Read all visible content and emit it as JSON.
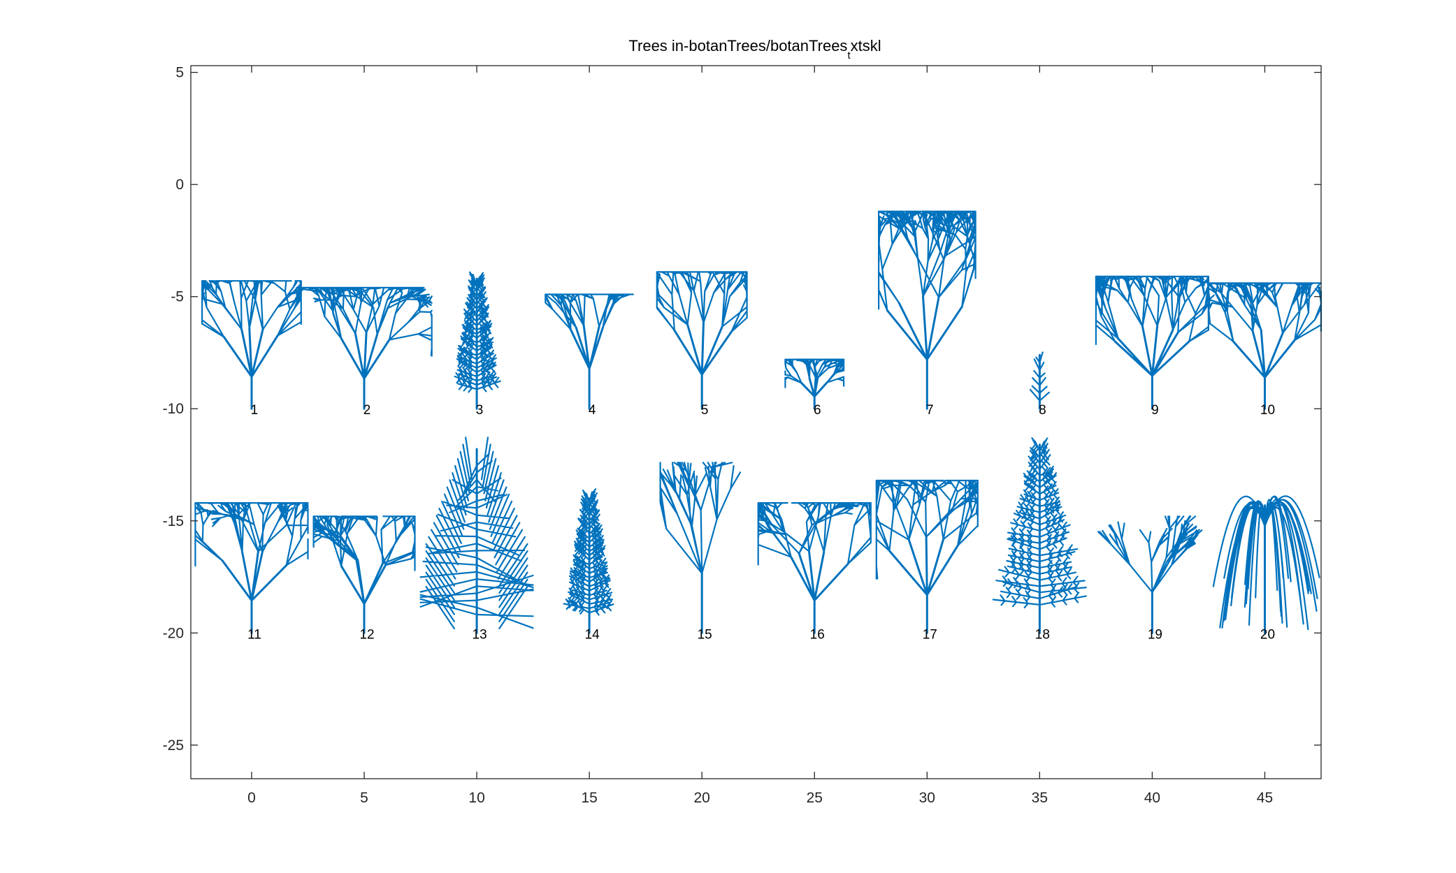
{
  "chart_data": {
    "type": "scatter",
    "title": "Trees in-botanTrees/botanTrees",
    "title_subscript": "t",
    "title_suffix": "xtskl",
    "xlabel": "",
    "ylabel": "",
    "xlim": [
      -2.7,
      47.5
    ],
    "ylim": [
      -26.5,
      5.3
    ],
    "xticks": [
      0,
      5,
      10,
      15,
      20,
      25,
      30,
      35,
      40,
      45
    ],
    "yticks": [
      5,
      0,
      -5,
      -10,
      -15,
      -20,
      -25
    ],
    "grid": false,
    "color": "#0072BD",
    "trees": [
      {
        "label": "1",
        "x": 0,
        "y": -10,
        "height": 5.7,
        "width": 4.4,
        "shape": "bushy"
      },
      {
        "label": "2",
        "x": 5,
        "y": -10,
        "height": 5.4,
        "width": 6.0,
        "shape": "spread"
      },
      {
        "label": "3",
        "x": 10,
        "y": -10,
        "height": 5.8,
        "width": 2.0,
        "shape": "conifer"
      },
      {
        "label": "4",
        "x": 15,
        "y": -10,
        "height": 5.1,
        "width": 3.9,
        "shape": "vase"
      },
      {
        "label": "5",
        "x": 20,
        "y": -10,
        "height": 6.1,
        "width": 4.0,
        "shape": "bushy"
      },
      {
        "label": "6",
        "x": 25,
        "y": -10,
        "height": 2.2,
        "width": 2.6,
        "shape": "bushy"
      },
      {
        "label": "7",
        "x": 30,
        "y": -10,
        "height": 8.8,
        "width": 4.3,
        "shape": "ovate"
      },
      {
        "label": "8",
        "x": 35,
        "y": -10,
        "height": 2.4,
        "width": 0.8,
        "shape": "sapling"
      },
      {
        "label": "9",
        "x": 40,
        "y": -10,
        "height": 5.9,
        "width": 5.0,
        "shape": "dense"
      },
      {
        "label": "10",
        "x": 45,
        "y": -10,
        "height": 5.6,
        "width": 5.0,
        "shape": "bushy"
      },
      {
        "label": "11",
        "x": 0,
        "y": -20,
        "height": 5.8,
        "width": 5.0,
        "shape": "spread"
      },
      {
        "label": "12",
        "x": 5,
        "y": -20,
        "height": 5.2,
        "width": 4.5,
        "shape": "spread"
      },
      {
        "label": "13",
        "x": 10,
        "y": -20,
        "height": 8.2,
        "width": 4.5,
        "shape": "cross"
      },
      {
        "label": "14",
        "x": 15,
        "y": -20,
        "height": 6.0,
        "width": 2.2,
        "shape": "conifer"
      },
      {
        "label": "15",
        "x": 20,
        "y": -20,
        "height": 7.6,
        "width": 3.7,
        "shape": "sparse"
      },
      {
        "label": "16",
        "x": 25,
        "y": -20,
        "height": 5.8,
        "width": 5.0,
        "shape": "spread"
      },
      {
        "label": "17",
        "x": 30,
        "y": -20,
        "height": 6.8,
        "width": 4.5,
        "shape": "spread"
      },
      {
        "label": "18",
        "x": 35,
        "y": -20,
        "height": 8.4,
        "width": 4.6,
        "shape": "conifer"
      },
      {
        "label": "19",
        "x": 40,
        "y": -20,
        "height": 5.2,
        "width": 5.3,
        "shape": "sparse"
      },
      {
        "label": "20",
        "x": 45,
        "y": -20,
        "height": 7.2,
        "width": 5.0,
        "shape": "weeping"
      }
    ]
  }
}
